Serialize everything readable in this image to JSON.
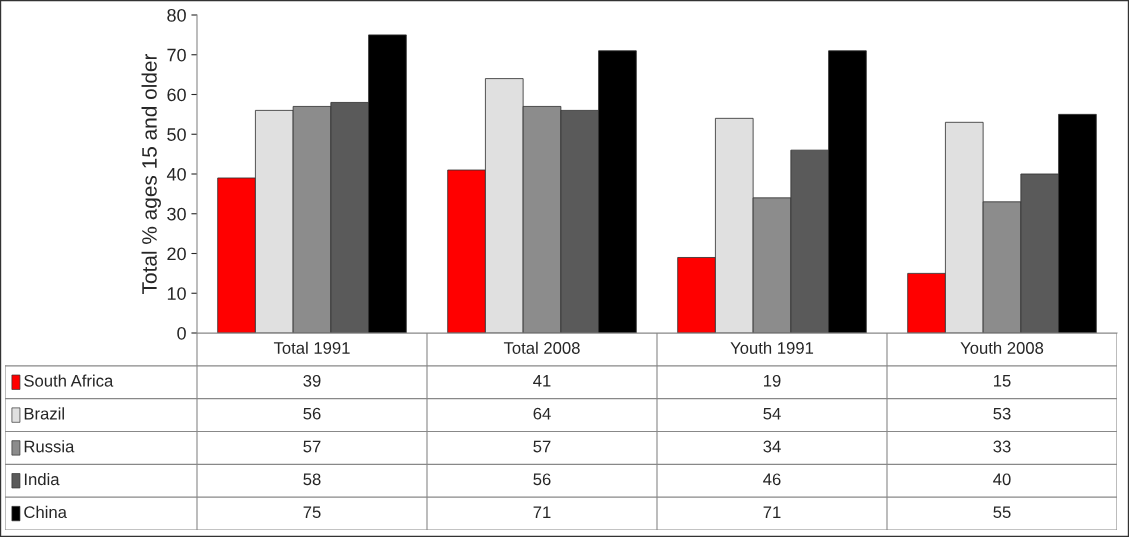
{
  "chart_data": {
    "type": "bar",
    "ylabel": "Total % ages 15 and older",
    "categories": [
      "Total 1991",
      "Total 2008",
      "Youth 1991",
      "Youth 2008"
    ],
    "series": [
      {
        "name": "South Africa",
        "color": "#ff0000",
        "values": [
          39,
          41,
          19,
          15
        ]
      },
      {
        "name": "Brazil",
        "color": "#e0e0e0",
        "values": [
          56,
          64,
          54,
          53
        ]
      },
      {
        "name": "Russia",
        "color": "#8c8c8c",
        "values": [
          57,
          57,
          34,
          33
        ]
      },
      {
        "name": "India",
        "color": "#5a5a5a",
        "values": [
          58,
          56,
          46,
          40
        ]
      },
      {
        "name": "China",
        "color": "#000000",
        "values": [
          75,
          71,
          71,
          55
        ]
      }
    ],
    "ylim": [
      0,
      80
    ],
    "yticks": [
      0,
      10,
      20,
      30,
      40,
      50,
      60,
      70,
      80
    ],
    "grid": false,
    "legend": "bottom",
    "data_labels": true
  }
}
